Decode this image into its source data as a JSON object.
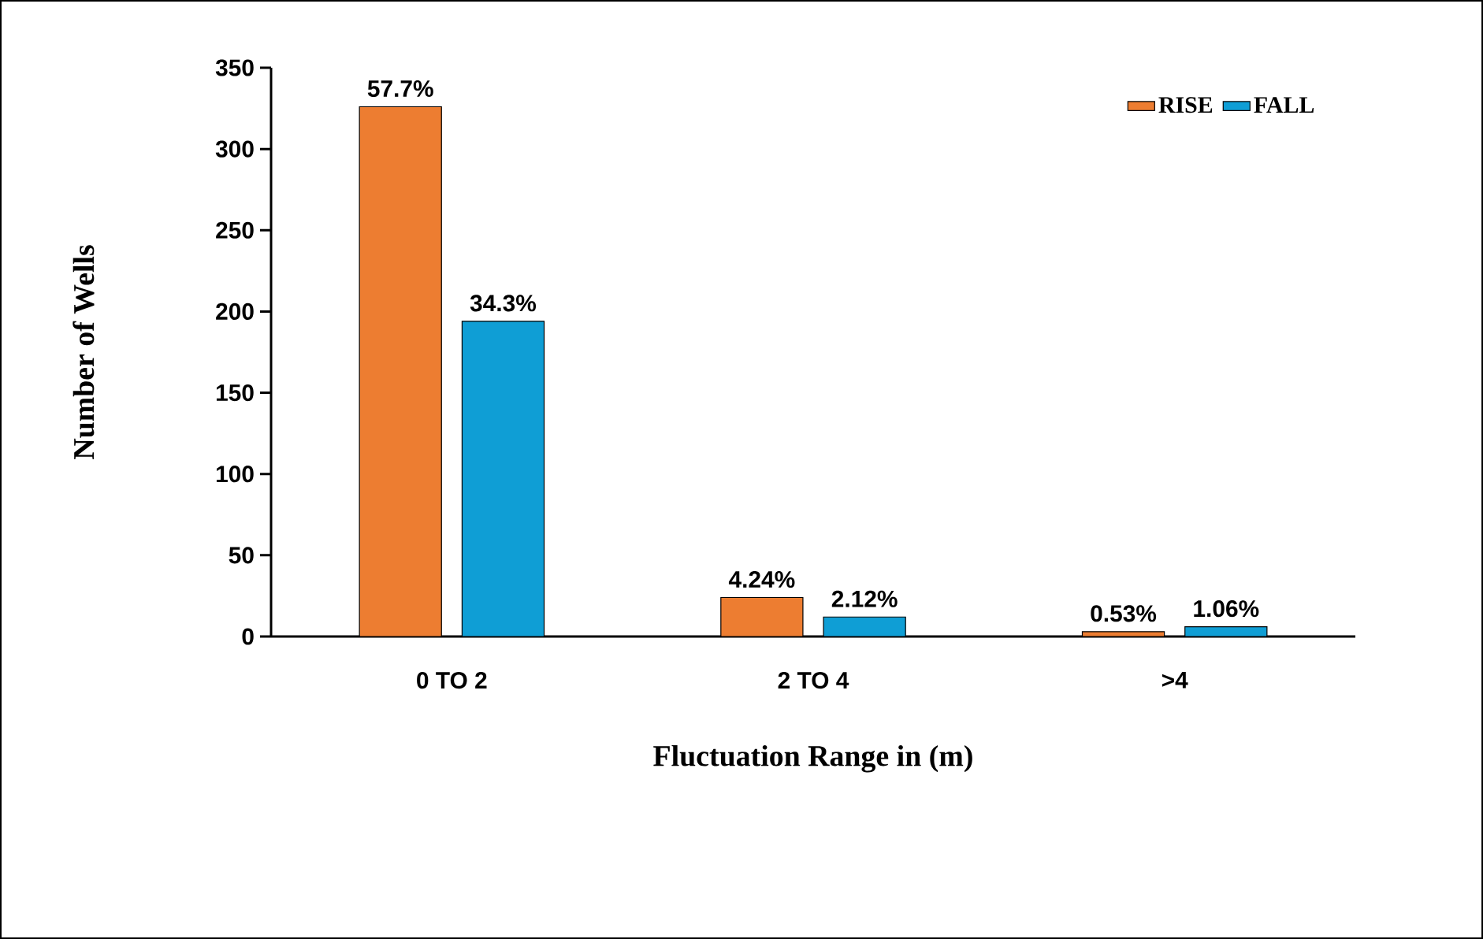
{
  "chart_data": {
    "type": "bar",
    "xlabel": "Fluctuation Range in (m)",
    "ylabel": "Number of Wells",
    "categories": [
      "0 TO 2",
      "2 TO 4",
      ">4"
    ],
    "series": [
      {
        "name": "RISE",
        "color": "#ed7d31",
        "values": [
          326,
          24,
          3
        ]
      },
      {
        "name": "FALL",
        "color": "#0f9ed5",
        "values": [
          194,
          12,
          6
        ]
      }
    ],
    "annotations": [
      "57.7%",
      "34.3%",
      "4.24%",
      "2.12%",
      "0.53%",
      "1.06%"
    ],
    "ylim": [
      0,
      350
    ],
    "yticks": [
      0,
      50,
      100,
      150,
      200,
      250,
      300,
      350
    ],
    "legend": "top right"
  }
}
